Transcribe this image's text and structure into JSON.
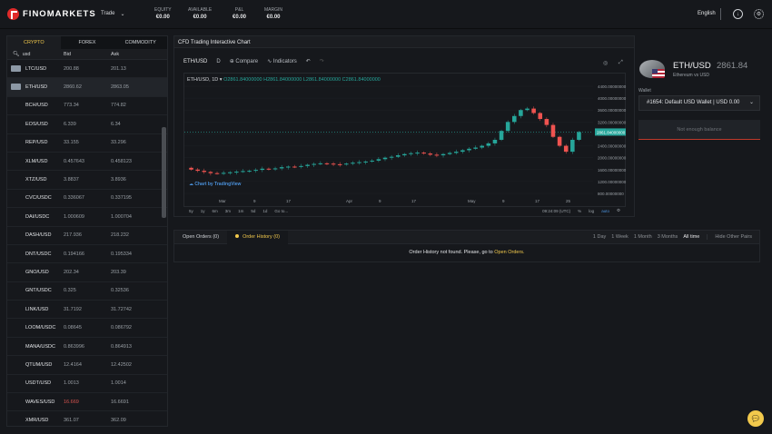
{
  "brand": {
    "name": "FINOMARKETS"
  },
  "topbar": {
    "trade_label": "Trade",
    "stats": [
      {
        "label": "EQUITY",
        "value": "€0.00"
      },
      {
        "label": "AVAILABLE",
        "value": "€0.00"
      },
      {
        "label": "P&L",
        "value": "€0.00"
      },
      {
        "label": "MARGIN",
        "value": "€0.00"
      }
    ],
    "language": "English"
  },
  "market": {
    "tabs": [
      "CRYPTO",
      "FOREX",
      "COMMODITY"
    ],
    "active_tab": "CRYPTO",
    "search_value": "usd",
    "col_bid": "Bid",
    "col_ask": "Ask",
    "rows": [
      {
        "symbol": "LTC/USD",
        "bid": "200.88",
        "ask": "201.13",
        "flag": "#8d99a6"
      },
      {
        "symbol": "ETH/USD",
        "bid": "2860.62",
        "ask": "2863.05",
        "flag": "#8d99a6"
      },
      {
        "symbol": "BCH/USD",
        "bid": "773.34",
        "ask": "774.82",
        "flag": ""
      },
      {
        "symbol": "EOS/USD",
        "bid": "6.339",
        "ask": "6.34",
        "flag": ""
      },
      {
        "symbol": "REP/USD",
        "bid": "33.155",
        "ask": "33.296",
        "flag": ""
      },
      {
        "symbol": "XLM/USD",
        "bid": "0.457643",
        "ask": "0.458123",
        "flag": ""
      },
      {
        "symbol": "XTZ/USD",
        "bid": "3.8837",
        "ask": "3.8936",
        "flag": ""
      },
      {
        "symbol": "CVC/USDC",
        "bid": "0.336067",
        "ask": "0.337195",
        "flag": ""
      },
      {
        "symbol": "DAI/USDC",
        "bid": "1.000609",
        "ask": "1.000704",
        "flag": ""
      },
      {
        "symbol": "DASH/USD",
        "bid": "217.936",
        "ask": "218.232",
        "flag": ""
      },
      {
        "symbol": "DNT/USDC",
        "bid": "0.194166",
        "ask": "0.195334",
        "flag": ""
      },
      {
        "symbol": "GNO/USD",
        "bid": "202.34",
        "ask": "203.39",
        "flag": ""
      },
      {
        "symbol": "GNT/USDC",
        "bid": "0.325",
        "ask": "0.32536",
        "flag": ""
      },
      {
        "symbol": "LINK/USD",
        "bid": "31.7192",
        "ask": "31.72742",
        "flag": ""
      },
      {
        "symbol": "LOOM/USDC",
        "bid": "0.08645",
        "ask": "0.086792",
        "flag": ""
      },
      {
        "symbol": "MANA/USDC",
        "bid": "0.863996",
        "ask": "0.864913",
        "flag": ""
      },
      {
        "symbol": "QTUM/USD",
        "bid": "12.4164",
        "ask": "12.42502",
        "flag": ""
      },
      {
        "symbol": "USDT/USD",
        "bid": "1.0013",
        "ask": "1.0014",
        "flag": ""
      },
      {
        "symbol": "WAVES/USD",
        "bid": "16.669",
        "ask": "16.6691",
        "flag": "",
        "bid_red": true
      },
      {
        "symbol": "XMR/USD",
        "bid": "361.07",
        "ask": "362.09",
        "flag": ""
      }
    ]
  },
  "chart_panel": {
    "title": "CFD Trading Interactive Chart",
    "toolbar": {
      "symbol": "ETH/USD",
      "interval": "D",
      "compare": "Compare",
      "indicators": "Indicators"
    },
    "legend_symbol": "ETH/USD, 1D",
    "legend_ohlc": "O2861.84000000  H2861.84000000  L2861.84000000  C2861.84000000",
    "price_ticks": [
      "4400.00000000",
      "4000.00000000",
      "3600.00000000",
      "3200.00000000",
      "2800.00000000",
      "2400.00000000",
      "2000.00000000",
      "1600.00000000",
      "1200.00000000",
      "800.00000000"
    ],
    "last_price_tag": "2861.84000000",
    "time_ticks": [
      "Mar",
      "9",
      "17",
      "Apr",
      "9",
      "17",
      "May",
      "9",
      "17",
      "25"
    ],
    "tv_badge": "Chart by TradingView",
    "ranges": [
      "5y",
      "1y",
      "6m",
      "3m",
      "1m",
      "5d",
      "1d",
      "Go to..."
    ],
    "clock": "09:24:09 (UTC)",
    "scale": [
      "%",
      "log",
      "auto"
    ]
  },
  "chart_data": {
    "type": "candlestick",
    "series_name": "ETH/USD",
    "x_labels": [
      "Mar",
      "9",
      "17",
      "Apr",
      "9",
      "17",
      "May",
      "9",
      "17",
      "25"
    ],
    "ylim": [
      800,
      4400
    ],
    "close": [
      1600,
      1560,
      1520,
      1480,
      1470,
      1490,
      1510,
      1530,
      1550,
      1560,
      1590,
      1630,
      1610,
      1640,
      1680,
      1700,
      1690,
      1720,
      1760,
      1790,
      1810,
      1800,
      1780,
      1770,
      1800,
      1830,
      1850,
      1870,
      1900,
      1950,
      2000,
      2030,
      2080,
      2120,
      2150,
      2170,
      2140,
      2100,
      2080,
      2120,
      2160,
      2200,
      2250,
      2300,
      2340,
      2400,
      2480,
      2600,
      2900,
      3200,
      3400,
      3600,
      3650,
      3500,
      3300,
      3100,
      2700,
      2400,
      2200,
      2600,
      2862
    ]
  },
  "instrument": {
    "name": "ETH/USD",
    "price": "2861.84",
    "subtitle": "Ethereum vs USD",
    "wallet_label": "Wallet",
    "wallet_value": "#1654: Default USD Wallet | USD 0.00",
    "no_balance": "Not enough balance"
  },
  "orders": {
    "tabs": [
      {
        "label": "Open Orders",
        "count": "(0)"
      },
      {
        "label": "Order History",
        "count": "(0)"
      }
    ],
    "periods": [
      "1 Day",
      "1 Week",
      "1 Month",
      "3 Months",
      "All time"
    ],
    "active_period": "All time",
    "hide_other": "Hide Other Pairs",
    "empty_text": "Order History not found. Please, go to",
    "empty_link": "Open Orders."
  }
}
